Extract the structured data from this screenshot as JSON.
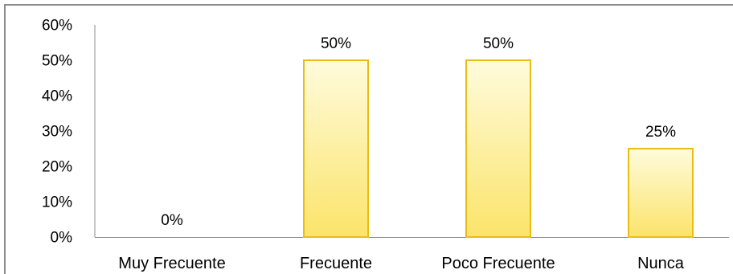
{
  "chart_data": {
    "type": "bar",
    "categories": [
      "Muy Frecuente",
      "Frecuente",
      "Poco Frecuente",
      "Nunca"
    ],
    "values": [
      0,
      50,
      50,
      25
    ],
    "data_labels": [
      "0%",
      "50%",
      "50%",
      "25%"
    ],
    "yticks": [
      "0%",
      "10%",
      "20%",
      "30%",
      "40%",
      "50%",
      "60%"
    ],
    "ylim": [
      0,
      60
    ],
    "title": "",
    "xlabel": "",
    "ylabel": "",
    "grid": false,
    "legend": "none",
    "bar_fill_top": "#fffbdc",
    "bar_fill_bottom": "#fbe46a",
    "bar_stroke": "#e8be16",
    "axis_color": "#8c8c8c"
  }
}
